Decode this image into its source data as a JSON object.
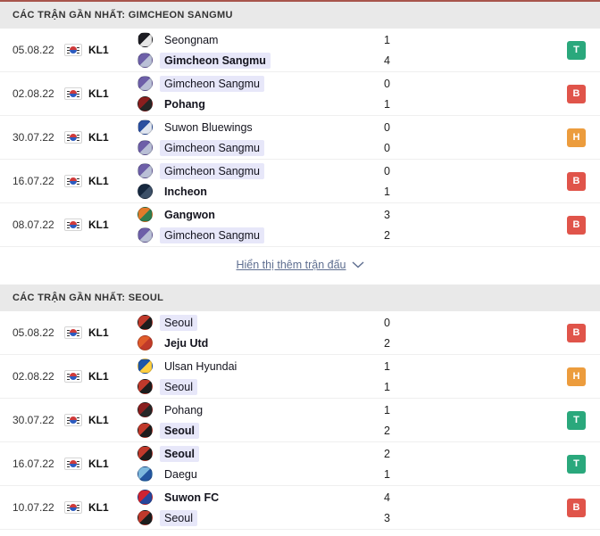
{
  "result_colors": {
    "T": "#2aa87c",
    "B": "#e0544a",
    "H": "#ec9c3d"
  },
  "highlight_color": "#e7e7f9",
  "show_more": {
    "label": "Hiển thị thêm trận đấu"
  },
  "sections": [
    {
      "title": "CÁC TRẬN GẦN NHẤT: GIMCHEON SANGMU",
      "matches": [
        {
          "date": "05.08.22",
          "league": "KL1",
          "result": "T",
          "teams": [
            {
              "name": "Seongnam",
              "score": "1",
              "highlight": false,
              "bold": false,
              "logo": [
                "#1c1c22",
                "#e6e6e6"
              ]
            },
            {
              "name": "Gimcheon Sangmu",
              "score": "4",
              "highlight": true,
              "bold": true,
              "logo": [
                "#6d5fa8",
                "#b9bfd6"
              ]
            }
          ]
        },
        {
          "date": "02.08.22",
          "league": "KL1",
          "result": "B",
          "teams": [
            {
              "name": "Gimcheon Sangmu",
              "score": "0",
              "highlight": true,
              "bold": false,
              "logo": [
                "#6d5fa8",
                "#b9bfd6"
              ]
            },
            {
              "name": "Pohang",
              "score": "1",
              "highlight": false,
              "bold": true,
              "logo": [
                "#8a1e1e",
                "#262626"
              ]
            }
          ]
        },
        {
          "date": "30.07.22",
          "league": "KL1",
          "result": "H",
          "teams": [
            {
              "name": "Suwon Bluewings",
              "score": "0",
              "highlight": false,
              "bold": false,
              "logo": [
                "#2a4fa0",
                "#dfe5f0"
              ]
            },
            {
              "name": "Gimcheon Sangmu",
              "score": "0",
              "highlight": true,
              "bold": false,
              "logo": [
                "#6d5fa8",
                "#b9bfd6"
              ]
            }
          ]
        },
        {
          "date": "16.07.22",
          "league": "KL1",
          "result": "B",
          "teams": [
            {
              "name": "Gimcheon Sangmu",
              "score": "0",
              "highlight": true,
              "bold": false,
              "logo": [
                "#6d5fa8",
                "#b9bfd6"
              ]
            },
            {
              "name": "Incheon",
              "score": "1",
              "highlight": false,
              "bold": true,
              "logo": [
                "#16283f",
                "#3c5068"
              ]
            }
          ]
        },
        {
          "date": "08.07.22",
          "league": "KL1",
          "result": "B",
          "teams": [
            {
              "name": "Gangwon",
              "score": "3",
              "highlight": false,
              "bold": true,
              "logo": [
                "#e07b2a",
                "#2f7d4f"
              ]
            },
            {
              "name": "Gimcheon Sangmu",
              "score": "2",
              "highlight": true,
              "bold": false,
              "logo": [
                "#6d5fa8",
                "#b9bfd6"
              ]
            }
          ]
        }
      ]
    },
    {
      "title": "CÁC TRẬN GẦN NHẤT: SEOUL",
      "matches": [
        {
          "date": "05.08.22",
          "league": "KL1",
          "result": "B",
          "teams": [
            {
              "name": "Seoul",
              "score": "0",
              "highlight": true,
              "bold": false,
              "logo": [
                "#c0392b",
                "#1d1d1d"
              ]
            },
            {
              "name": "Jeju Utd",
              "score": "2",
              "highlight": false,
              "bold": true,
              "logo": [
                "#e05c2a",
                "#c03a2a"
              ]
            }
          ]
        },
        {
          "date": "02.08.22",
          "league": "KL1",
          "result": "H",
          "teams": [
            {
              "name": "Ulsan Hyundai",
              "score": "1",
              "highlight": false,
              "bold": false,
              "logo": [
                "#1e56a8",
                "#ffcf40"
              ]
            },
            {
              "name": "Seoul",
              "score": "1",
              "highlight": true,
              "bold": false,
              "logo": [
                "#c0392b",
                "#1d1d1d"
              ]
            }
          ]
        },
        {
          "date": "30.07.22",
          "league": "KL1",
          "result": "T",
          "teams": [
            {
              "name": "Pohang",
              "score": "1",
              "highlight": false,
              "bold": false,
              "logo": [
                "#8a1e1e",
                "#262626"
              ]
            },
            {
              "name": "Seoul",
              "score": "2",
              "highlight": true,
              "bold": true,
              "logo": [
                "#c0392b",
                "#1d1d1d"
              ]
            }
          ]
        },
        {
          "date": "16.07.22",
          "league": "KL1",
          "result": "T",
          "teams": [
            {
              "name": "Seoul",
              "score": "2",
              "highlight": true,
              "bold": true,
              "logo": [
                "#c0392b",
                "#1d1d1d"
              ]
            },
            {
              "name": "Daegu",
              "score": "1",
              "highlight": false,
              "bold": false,
              "logo": [
                "#7db8dd",
                "#2456a0"
              ]
            }
          ]
        },
        {
          "date": "10.07.22",
          "league": "KL1",
          "result": "B",
          "teams": [
            {
              "name": "Suwon FC",
              "score": "4",
              "highlight": false,
              "bold": true,
              "logo": [
                "#cf2332",
                "#27469c"
              ]
            },
            {
              "name": "Seoul",
              "score": "3",
              "highlight": true,
              "bold": false,
              "logo": [
                "#c0392b",
                "#1d1d1d"
              ]
            }
          ]
        }
      ]
    }
  ]
}
